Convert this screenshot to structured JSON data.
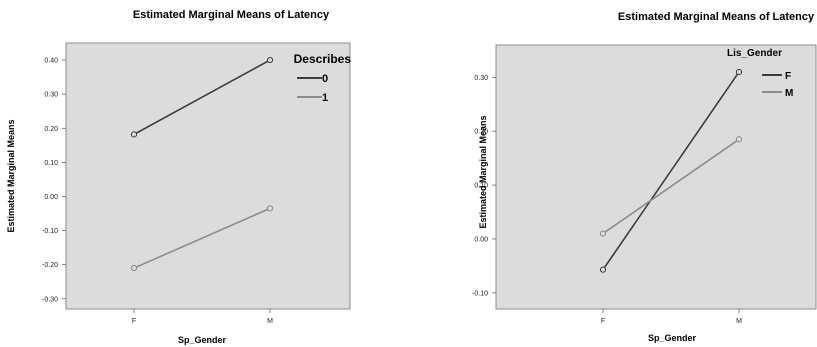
{
  "chart_data": [
    {
      "type": "line",
      "title": "Estimated Marginal Means of Latency",
      "xlabel": "Sp_Gender",
      "ylabel": "Estimated Marginal Means",
      "categories": [
        "F",
        "M"
      ],
      "yticks": [
        "0.40",
        "0.30",
        "0.20",
        "0.10",
        "0.00",
        "-0.10",
        "-0.20",
        "-0.30"
      ],
      "ylim": [
        -0.33,
        0.45
      ],
      "legend_title": "Describes",
      "legend_position": "top-right",
      "series": [
        {
          "name": "0",
          "color": "#3c3c3c",
          "values": [
            0.182,
            0.4
          ]
        },
        {
          "name": "1",
          "color": "#8c8c8c",
          "values": [
            -0.21,
            -0.035
          ]
        }
      ]
    },
    {
      "type": "line",
      "title": "Estimated Marginal Means of Latency",
      "xlabel": "Sp_Gender",
      "ylabel": "Estimated Marginal Means",
      "categories": [
        "F",
        "M"
      ],
      "yticks": [
        "0.30",
        "0.20",
        "0.10",
        "0.00",
        "-0.10"
      ],
      "ylim": [
        -0.13,
        0.36
      ],
      "legend_title": "Lis_Gender",
      "legend_position": "top-right",
      "series": [
        {
          "name": "F",
          "color": "#3c3c3c",
          "values": [
            -0.057,
            0.31
          ]
        },
        {
          "name": "M",
          "color": "#8c8c8c",
          "values": [
            0.01,
            0.185
          ]
        }
      ]
    }
  ]
}
